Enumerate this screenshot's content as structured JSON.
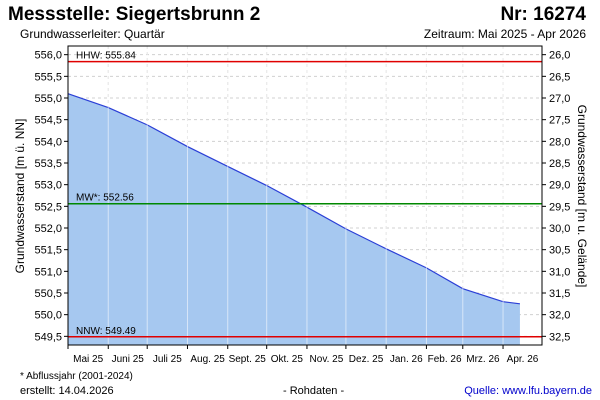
{
  "header": {
    "title": "Messstelle: Siegertsbrunn 2",
    "station_number": "Nr: 16274",
    "subtitle": "Grundwasserleiter: Quartär",
    "period": "Zeitraum: Mai 2025 - Apr 2026"
  },
  "footer": {
    "footnote": "* Abflussjahr (2001-2024)",
    "created": "erstellt:  14.04.2026",
    "raw_data": "- Rohdaten -",
    "source": "Quelle: www.lfu.bayern.de"
  },
  "colors": {
    "area_fill": "#a6c8f0",
    "series_line": "#2b3fd6",
    "hhw_line": "#e00000",
    "mw_line": "#008800",
    "nnw_line": "#e00000",
    "grid": "#d0d0d0",
    "month_grid": "#ffffff"
  },
  "chart_data": {
    "type": "area",
    "ylabel": "Grundwasserstand [m ü. NN]",
    "y2label": "Grundwasserstand [m u. Gelände]",
    "ylim": [
      549.3,
      556.2
    ],
    "yticks": [
      "549,5",
      "550,0",
      "550,5",
      "551,0",
      "551,5",
      "552,0",
      "552,5",
      "553,0",
      "553,5",
      "554,0",
      "554,5",
      "555,0",
      "555,5",
      "556,0"
    ],
    "y2ticks": [
      "32,5",
      "32,0",
      "31,5",
      "31,0",
      "30,5",
      "30,0",
      "29,5",
      "29,0",
      "28,5",
      "28,0",
      "27,5",
      "27,0",
      "26,5",
      "26,0"
    ],
    "grid": true,
    "months": [
      "Mai 25",
      "Juni 25",
      "Juli 25",
      "Aug. 25",
      "Sept. 25",
      "Okt. 25",
      "Nov. 25",
      "Dez. 25",
      "Jan. 26",
      "Feb. 26",
      "Mrz. 26",
      "Apr. 26"
    ],
    "series": [
      {
        "x": [
          "2025-05-01",
          "2025-06-01",
          "2025-07-01",
          "2025-08-01",
          "2025-09-01",
          "2025-10-01",
          "2025-11-01",
          "2025-12-01",
          "2026-01-01",
          "2026-02-01",
          "2026-03-01",
          "2026-04-01",
          "2026-04-14"
        ],
        "y": [
          555.1,
          554.78,
          554.38,
          553.88,
          553.42,
          552.98,
          552.48,
          551.98,
          551.52,
          551.08,
          550.6,
          550.3,
          550.25
        ]
      }
    ],
    "reference_lines": [
      {
        "label": "HHW: 555.84",
        "value": 555.84
      },
      {
        "label": "MW*: 552.56",
        "value": 552.56
      },
      {
        "label": "NNW: 549.49",
        "value": 549.49
      }
    ]
  }
}
